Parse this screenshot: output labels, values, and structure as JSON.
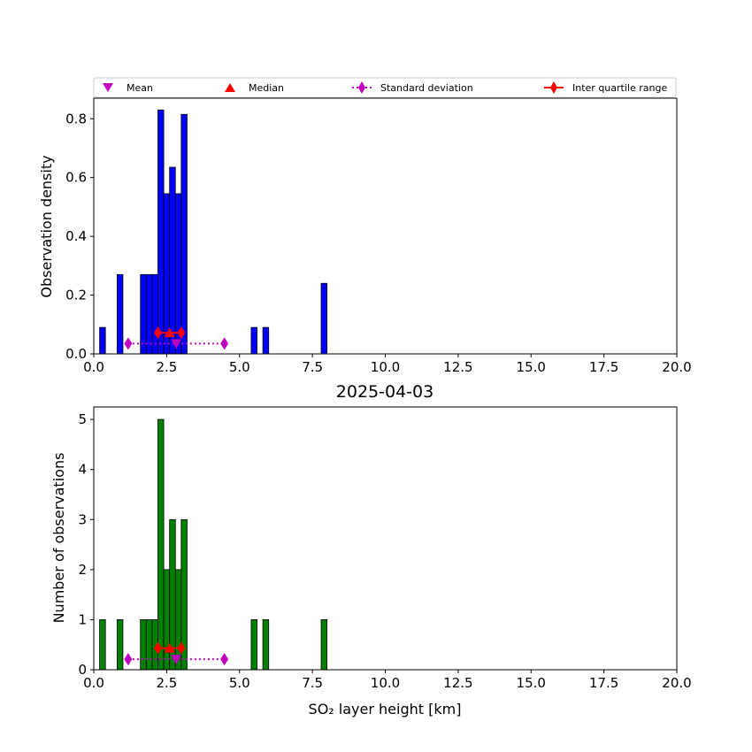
{
  "title": "2025-04-03",
  "legend": {
    "mean": "Mean",
    "median": "Median",
    "std": "Standard deviation",
    "iqr": "Inter quartile range"
  },
  "colors": {
    "density_bar": "#0000ff",
    "count_bar": "#008000",
    "mean": "#bf00bf",
    "median": "#ff0000",
    "std": "#bf00bf",
    "iqr": "#ff0000"
  },
  "chart_data": [
    {
      "type": "bar",
      "panel": "top",
      "ylabel": "Observation density",
      "xlim": [
        0,
        20
      ],
      "ylim": [
        0,
        0.87
      ],
      "xticks": [
        "0.0",
        "2.5",
        "5.0",
        "7.5",
        "10.0",
        "12.5",
        "15.0",
        "17.5",
        "20.0"
      ],
      "yticks": [
        "0.0",
        "0.2",
        "0.4",
        "0.6",
        "0.8"
      ],
      "bin_width": 0.2,
      "bins": [
        {
          "x": 0.2,
          "value": 0.09
        },
        {
          "x": 0.8,
          "value": 0.27
        },
        {
          "x": 1.6,
          "value": 0.27
        },
        {
          "x": 1.8,
          "value": 0.27
        },
        {
          "x": 2.0,
          "value": 0.27
        },
        {
          "x": 2.2,
          "value": 0.83
        },
        {
          "x": 2.4,
          "value": 0.545
        },
        {
          "x": 2.6,
          "value": 0.635
        },
        {
          "x": 2.8,
          "value": 0.545
        },
        {
          "x": 3.0,
          "value": 0.815
        },
        {
          "x": 5.4,
          "value": 0.09
        },
        {
          "x": 5.8,
          "value": 0.09
        },
        {
          "x": 7.8,
          "value": 0.24
        }
      ],
      "stats": {
        "mean": {
          "x": 2.83,
          "y": 0.035
        },
        "median": {
          "x": 2.6,
          "y": 0.072
        },
        "std": {
          "x": [
            1.18,
            4.48
          ],
          "y": 0.035
        },
        "iqr": {
          "x": [
            2.2,
            3.0
          ],
          "y": 0.072
        }
      }
    },
    {
      "type": "bar",
      "panel": "bottom",
      "ylabel": "Number of observations",
      "xlabel": "SO₂ layer height [km]",
      "xlim": [
        0,
        20
      ],
      "ylim": [
        0,
        5.25
      ],
      "xticks": [
        "0.0",
        "2.5",
        "5.0",
        "7.5",
        "10.0",
        "12.5",
        "15.0",
        "17.5",
        "20.0"
      ],
      "yticks": [
        "0",
        "1",
        "2",
        "3",
        "4",
        "5"
      ],
      "bin_width": 0.2,
      "bins": [
        {
          "x": 0.2,
          "value": 1
        },
        {
          "x": 0.8,
          "value": 1
        },
        {
          "x": 1.6,
          "value": 1
        },
        {
          "x": 1.8,
          "value": 1
        },
        {
          "x": 2.0,
          "value": 1
        },
        {
          "x": 2.2,
          "value": 5
        },
        {
          "x": 2.4,
          "value": 2
        },
        {
          "x": 2.6,
          "value": 3
        },
        {
          "x": 2.8,
          "value": 2
        },
        {
          "x": 3.0,
          "value": 3
        },
        {
          "x": 5.4,
          "value": 1
        },
        {
          "x": 5.8,
          "value": 1
        },
        {
          "x": 7.8,
          "value": 1
        }
      ],
      "stats": {
        "mean": {
          "x": 2.83,
          "y": 0.21
        },
        "median": {
          "x": 2.6,
          "y": 0.43
        },
        "std": {
          "x": [
            1.18,
            4.48
          ],
          "y": 0.21
        },
        "iqr": {
          "x": [
            2.2,
            3.0
          ],
          "y": 0.43
        }
      }
    }
  ]
}
